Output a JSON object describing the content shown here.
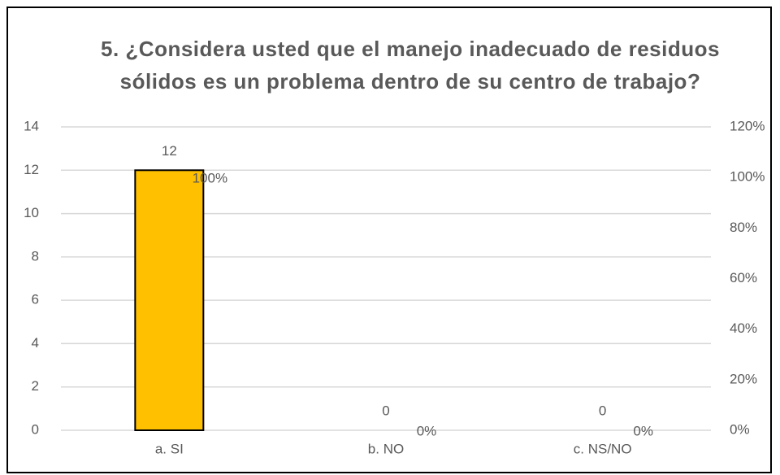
{
  "chart_data": {
    "type": "bar",
    "title": "5. ¿Considera usted que el manejo inadecuado de residuos sólidos es un problema dentro de su centro de trabajo?",
    "categories": [
      "a. SI",
      "b. NO",
      "c. NS/NO"
    ],
    "series": [
      {
        "type": "bar",
        "color": "#ffc000",
        "values": [
          12,
          0,
          0
        ]
      },
      {
        "type": "labels",
        "axis": "y2",
        "values": [
          100,
          0,
          0
        ],
        "value_labels": [
          "100%",
          "0%",
          "0%"
        ]
      }
    ],
    "ylim": [
      0,
      14
    ],
    "yticks": [
      0,
      2,
      4,
      6,
      8,
      10,
      12,
      14
    ],
    "y2lim": [
      0,
      120
    ],
    "y2ticks": [
      {
        "value": 0,
        "label": "0%"
      },
      {
        "value": 20,
        "label": "20%"
      },
      {
        "value": 40,
        "label": "40%"
      },
      {
        "value": 60,
        "label": "60%"
      },
      {
        "value": 80,
        "label": "80%"
      },
      {
        "value": 100,
        "label": "100%"
      },
      {
        "value": 120,
        "label": "120%"
      }
    ],
    "grid": true
  }
}
